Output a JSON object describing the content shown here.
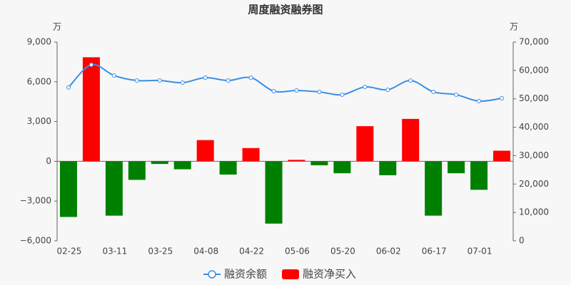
{
  "chart_data": {
    "type": "combo",
    "title": "周度融资融券图",
    "y_unit": "万",
    "y2_unit": "万",
    "categories": [
      "02-25",
      null,
      "03-11",
      null,
      "03-25",
      null,
      "04-08",
      null,
      "04-22",
      null,
      "05-06",
      null,
      "05-20",
      null,
      "06-02",
      null,
      "06-17",
      null,
      "07-01",
      null
    ],
    "series": [
      {
        "name": "融资余额",
        "type": "line",
        "axis": "y2",
        "color": "#3b8ee6",
        "values": [
          54000,
          62000,
          58200,
          56450,
          56450,
          55700,
          57450,
          56450,
          57450,
          52700,
          52950,
          52450,
          51450,
          54200,
          53200,
          56450,
          52450,
          51450,
          49200,
          50200
        ]
      },
      {
        "name": "融资净买入",
        "type": "bar",
        "axis": "y",
        "color": "#ff0000",
        "negative_color": "#008000",
        "values": [
          -4200,
          7850,
          -4100,
          -1400,
          -200,
          -600,
          1600,
          -1000,
          1000,
          -4700,
          110,
          -300,
          -900,
          2650,
          -1050,
          3200,
          -4100,
          -900,
          -2150,
          800
        ]
      }
    ],
    "ylim": [
      -6000,
      9000
    ],
    "yticks": [
      {
        "value": -6000,
        "label": "−6,000"
      },
      {
        "value": -3000,
        "label": "−3,000"
      },
      0,
      {
        "value": 3000,
        "label": "3,000"
      },
      {
        "value": 6000,
        "label": "6,000"
      },
      {
        "value": 9000,
        "label": "9,000"
      }
    ],
    "y2lim": [
      0,
      70000
    ],
    "y2ticks": [
      0,
      {
        "value": 10000,
        "label": "10,000"
      },
      {
        "value": 20000,
        "label": "20,000"
      },
      {
        "value": 30000,
        "label": "30,000"
      },
      {
        "value": 40000,
        "label": "40,000"
      },
      {
        "value": 50000,
        "label": "50,000"
      },
      {
        "value": 60000,
        "label": "60,000"
      },
      {
        "value": 70000,
        "label": "70,000"
      }
    ]
  }
}
